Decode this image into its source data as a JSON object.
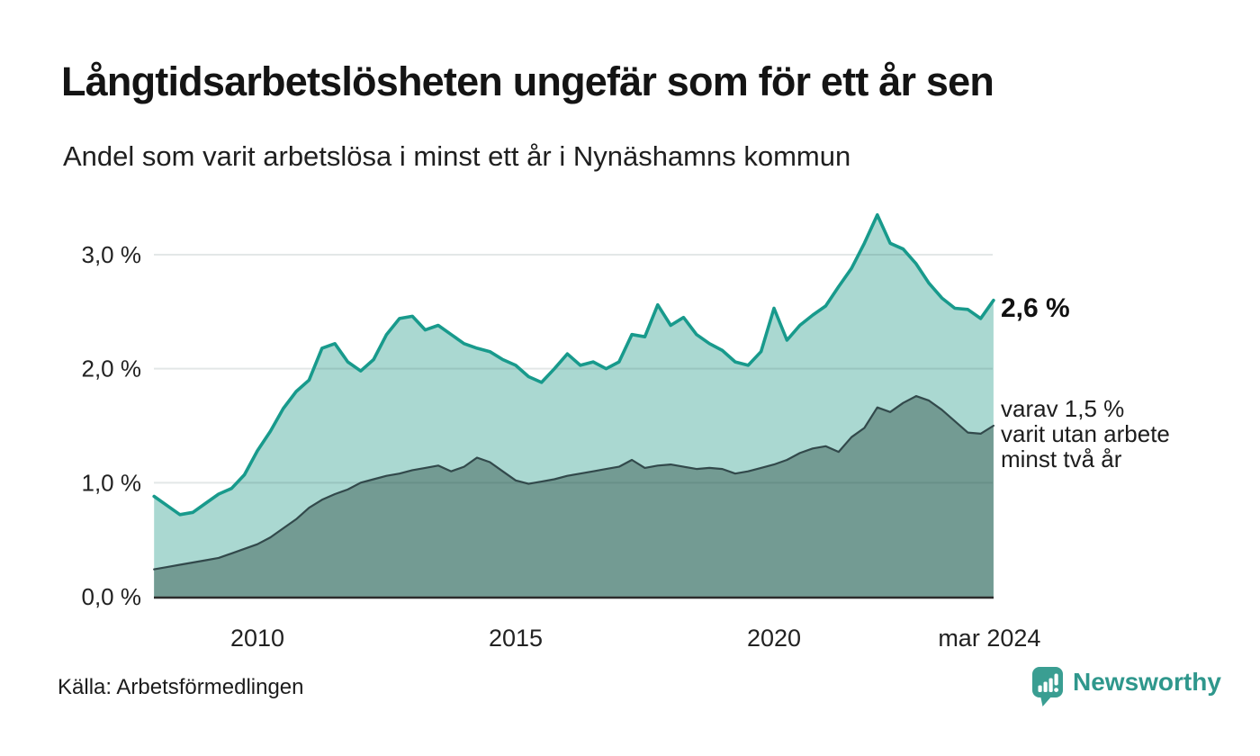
{
  "header": {
    "title": "Långtidsarbetslösheten ungefär som för ett år sen",
    "subtitle": "Andel som varit arbetslösa i minst ett år i Nynäshamns kommun"
  },
  "annotations": {
    "primary": "2,6 %",
    "secondary": [
      "varav 1,5 %",
      "varit utan arbete",
      "minst två år"
    ]
  },
  "footer": {
    "source": "Källa: Arbetsförmedlingen",
    "brand": "Newsworthy",
    "logo_icon": "newsworthy-speech-bubble-bar-chart"
  },
  "colors": {
    "series1_line": "#189a8c",
    "series1_fill": "#aad8d1",
    "series2_line": "#32494b",
    "series2_fill": "#739b93",
    "grid": "rgba(40,70,70,0.13)",
    "axis": "#2c2c2c",
    "tick_text": "#222222",
    "brand": "#2f978c"
  },
  "chart_data": {
    "type": "area",
    "title": "Långtidsarbetslösheten ungefär som för ett år sen",
    "xlabel": "",
    "ylabel": "",
    "grid": true,
    "legend_position": "right-edge annotations",
    "ylim": [
      0,
      3.45
    ],
    "yticks": [
      {
        "v": 0,
        "label": "0,0 %"
      },
      {
        "v": 1,
        "label": "1,0 %"
      },
      {
        "v": 2,
        "label": "2,0 %"
      },
      {
        "v": 3,
        "label": "3,0 %"
      }
    ],
    "xticks": [
      {
        "v": 2010,
        "label": "2010"
      },
      {
        "v": 2015,
        "label": "2015"
      },
      {
        "v": 2020,
        "label": "2020"
      },
      {
        "v": 2024.17,
        "label": "mar 2024"
      }
    ],
    "x": [
      2008.0,
      2008.25,
      2008.5,
      2008.75,
      2009.0,
      2009.25,
      2009.5,
      2009.75,
      2010.0,
      2010.25,
      2010.5,
      2010.75,
      2011.0,
      2011.25,
      2011.5,
      2011.75,
      2012.0,
      2012.25,
      2012.5,
      2012.75,
      2013.0,
      2013.25,
      2013.5,
      2013.75,
      2014.0,
      2014.25,
      2014.5,
      2014.75,
      2015.0,
      2015.25,
      2015.5,
      2015.75,
      2016.0,
      2016.25,
      2016.5,
      2016.75,
      2017.0,
      2017.25,
      2017.5,
      2017.75,
      2018.0,
      2018.25,
      2018.5,
      2018.75,
      2019.0,
      2019.25,
      2019.5,
      2019.75,
      2020.0,
      2020.25,
      2020.5,
      2020.75,
      2021.0,
      2021.25,
      2021.5,
      2021.75,
      2022.0,
      2022.25,
      2022.5,
      2022.75,
      2023.0,
      2023.25,
      2023.5,
      2023.75,
      2024.0,
      2024.25
    ],
    "series": [
      {
        "name": "Arbetslösa minst ett år",
        "end_label": "2,6 %",
        "end_value": 2.6,
        "values": [
          0.88,
          0.8,
          0.72,
          0.74,
          0.82,
          0.9,
          0.95,
          1.07,
          1.28,
          1.45,
          1.65,
          1.8,
          1.9,
          2.18,
          2.22,
          2.06,
          1.98,
          2.08,
          2.3,
          2.44,
          2.46,
          2.34,
          2.38,
          2.3,
          2.22,
          2.18,
          2.15,
          2.08,
          2.03,
          1.93,
          1.88,
          2.0,
          2.13,
          2.03,
          2.06,
          2.0,
          2.06,
          2.3,
          2.28,
          2.56,
          2.38,
          2.45,
          2.3,
          2.22,
          2.16,
          2.06,
          2.03,
          2.15,
          2.53,
          2.25,
          2.38,
          2.47,
          2.55,
          2.72,
          2.88,
          3.1,
          3.35,
          3.1,
          3.05,
          2.92,
          2.75,
          2.62,
          2.53,
          2.52,
          2.44,
          2.6
        ]
      },
      {
        "name": "varav utan arbete minst två år",
        "end_label": "varav 1,5 % varit utan arbete minst två år",
        "end_value": 1.5,
        "values": [
          0.24,
          0.26,
          0.28,
          0.3,
          0.32,
          0.34,
          0.38,
          0.42,
          0.46,
          0.52,
          0.6,
          0.68,
          0.78,
          0.85,
          0.9,
          0.94,
          1.0,
          1.03,
          1.06,
          1.08,
          1.11,
          1.13,
          1.15,
          1.1,
          1.14,
          1.22,
          1.18,
          1.1,
          1.02,
          0.99,
          1.01,
          1.03,
          1.06,
          1.08,
          1.1,
          1.12,
          1.14,
          1.2,
          1.13,
          1.15,
          1.16,
          1.14,
          1.12,
          1.13,
          1.12,
          1.08,
          1.1,
          1.13,
          1.16,
          1.2,
          1.26,
          1.3,
          1.32,
          1.27,
          1.4,
          1.48,
          1.66,
          1.62,
          1.7,
          1.76,
          1.72,
          1.64,
          1.54,
          1.44,
          1.43,
          1.5
        ]
      }
    ]
  }
}
